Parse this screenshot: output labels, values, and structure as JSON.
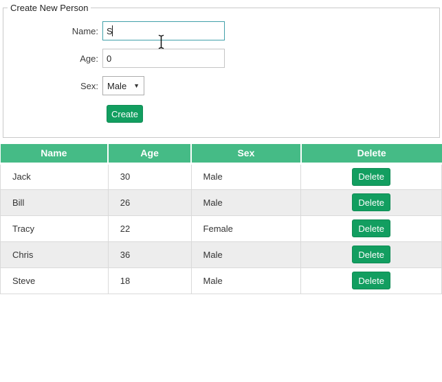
{
  "form": {
    "legend": "Create New Person",
    "name": {
      "label": "Name:",
      "value": "S"
    },
    "age": {
      "label": "Age:",
      "value": "0"
    },
    "sex": {
      "label": "Sex:",
      "value": "Male"
    },
    "create_label": "Create"
  },
  "icons": {
    "dropdown_arrow": "▼"
  },
  "table": {
    "headers": [
      "Name",
      "Age",
      "Sex",
      "Delete"
    ],
    "delete_label": "Delete",
    "rows": [
      {
        "name": "Jack",
        "age": "30",
        "sex": "Male"
      },
      {
        "name": "Bill",
        "age": "26",
        "sex": "Male"
      },
      {
        "name": "Tracy",
        "age": "22",
        "sex": "Female"
      },
      {
        "name": "Chris",
        "age": "36",
        "sex": "Male"
      },
      {
        "name": "Steve",
        "age": "18",
        "sex": "Male"
      }
    ]
  },
  "colors": {
    "table_header_bg": "#45bb86",
    "button_bg": "#129e60",
    "row_alt_bg": "#ededed",
    "focused_input_border": "#3f9fa8"
  },
  "cursor": {
    "type": "i-beam"
  }
}
